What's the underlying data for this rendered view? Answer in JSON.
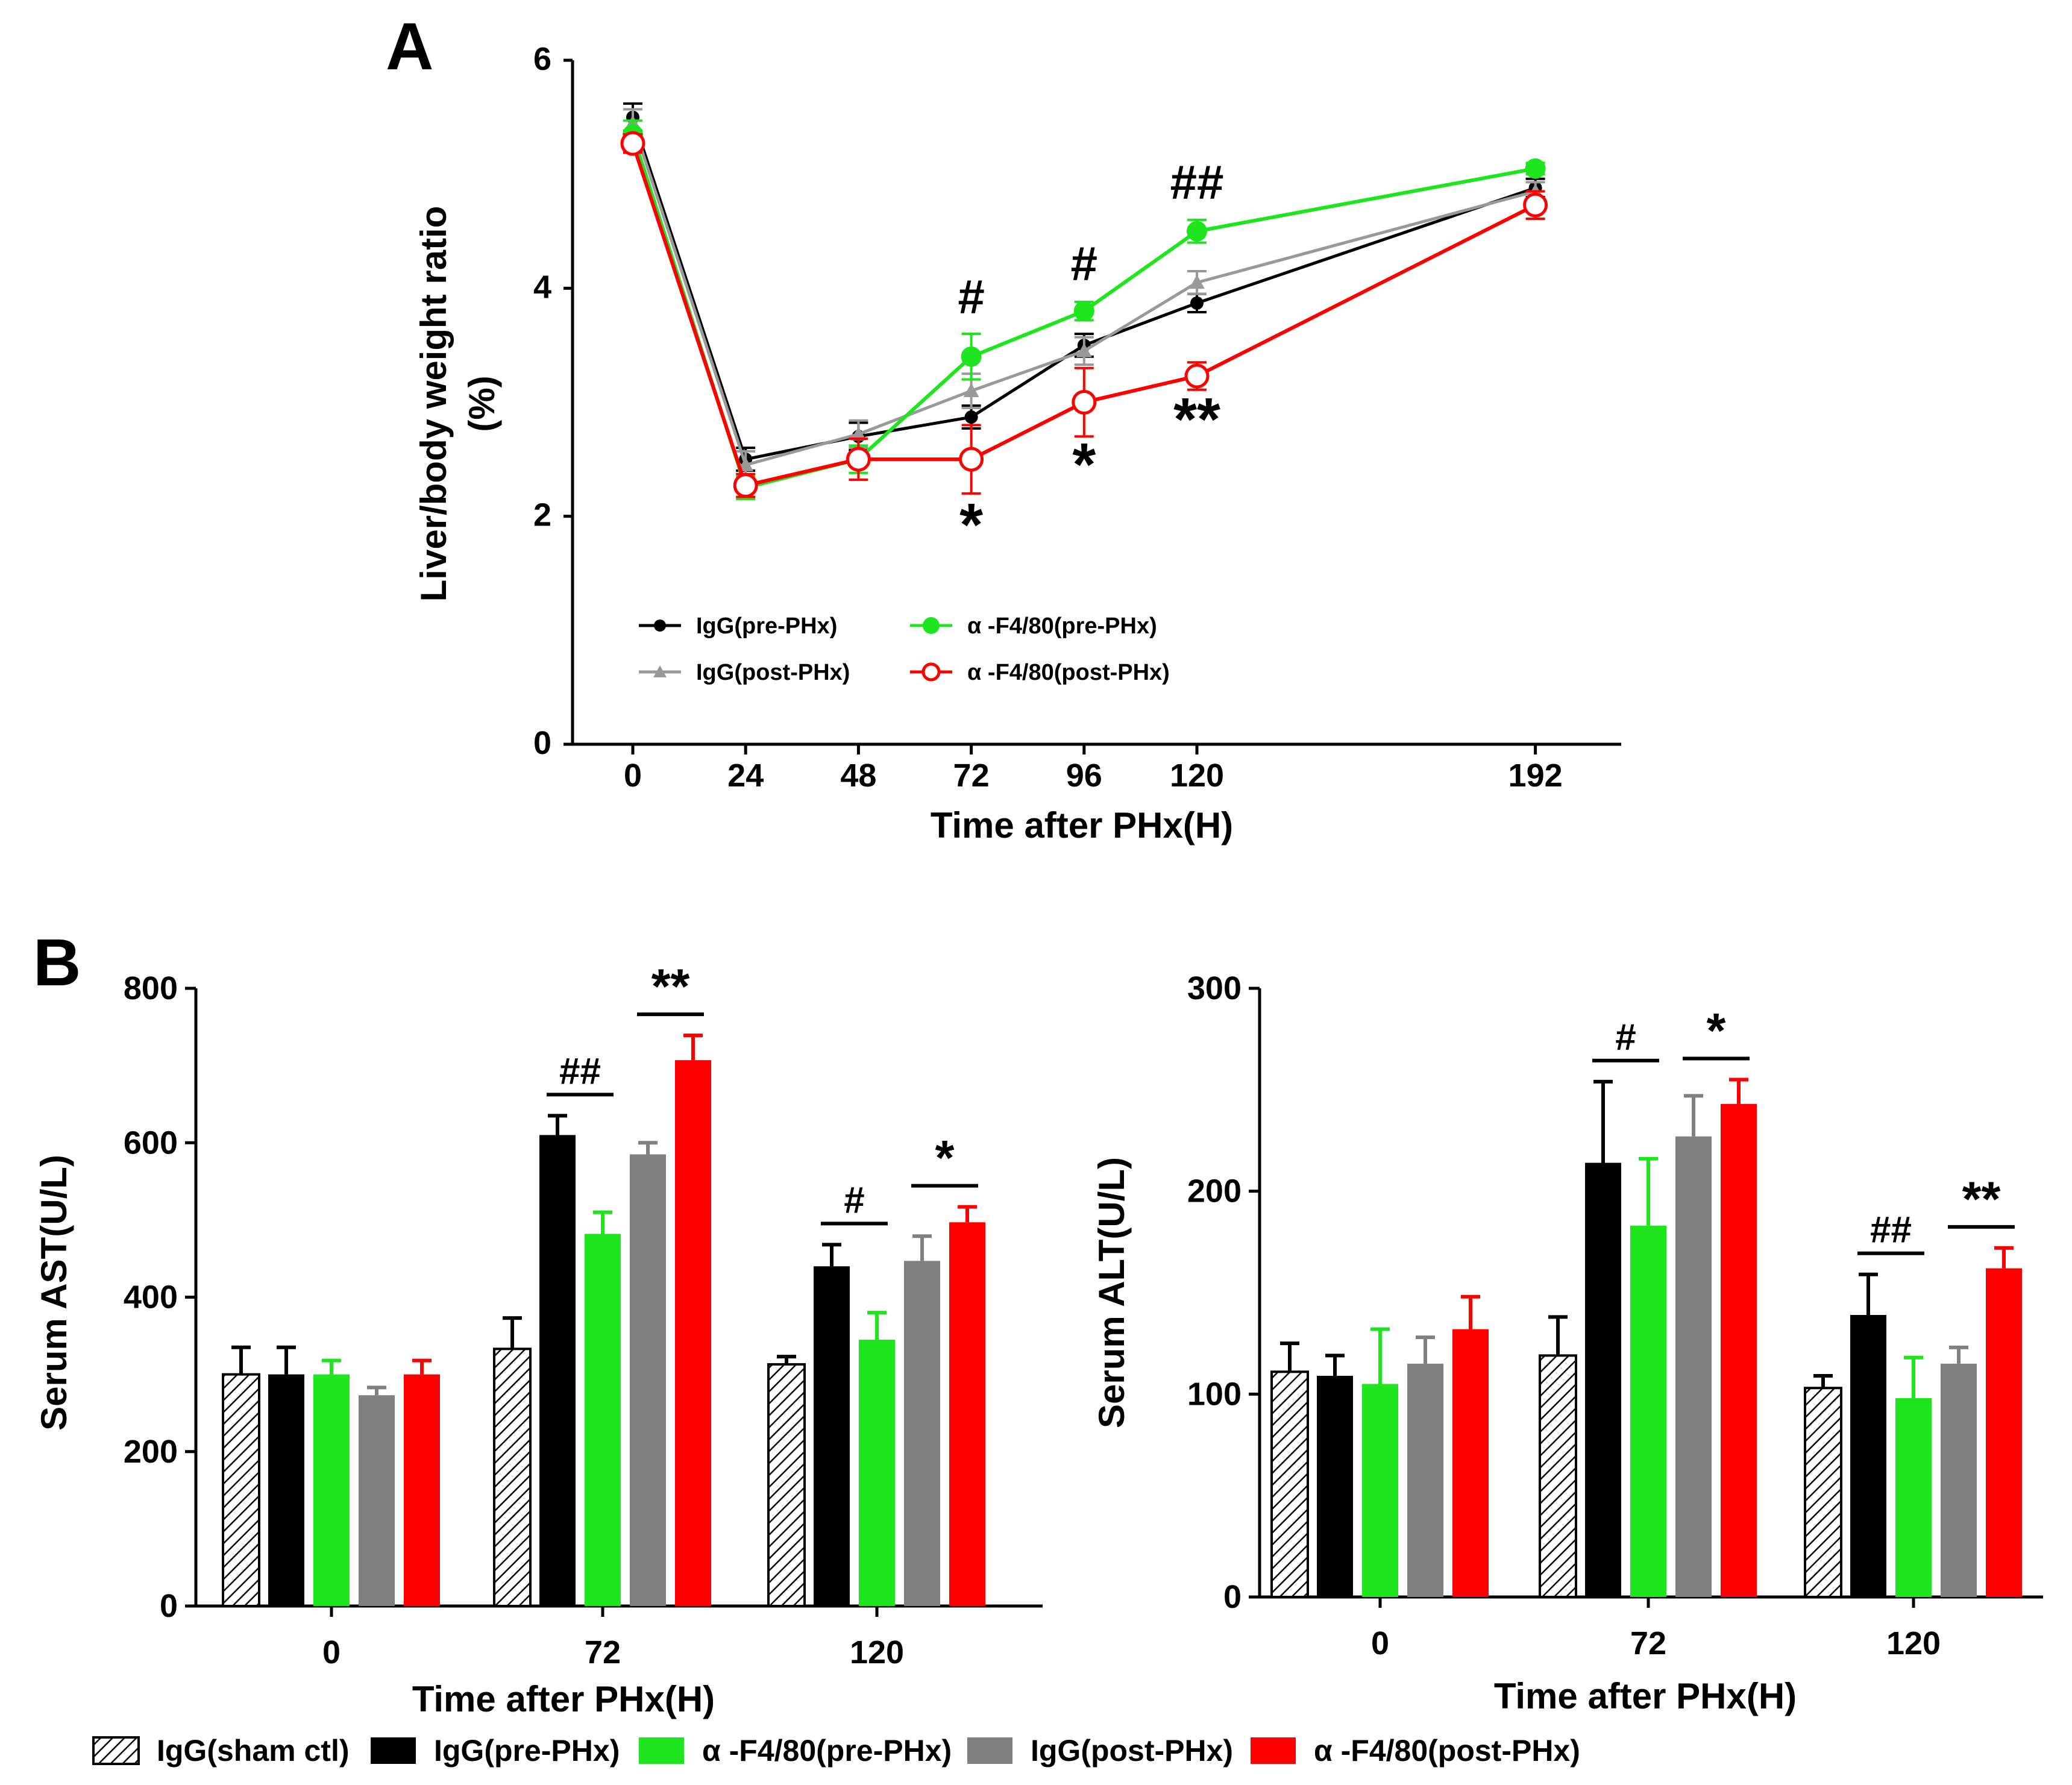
{
  "panel_labels": {
    "a": "A",
    "b": "B"
  },
  "colors": {
    "sham": "#ffffff",
    "pre_igg": "#000000",
    "pre_anti": "#1fe51f",
    "post_igg": "#808080",
    "post_anti": "#ff0000",
    "line_post_igg": "#999999"
  },
  "chart_data": [
    {
      "type": "line",
      "panel": "A",
      "title": "",
      "xlabel": "Time after PHx(H)",
      "ylabel_line1": "Liver/body weight ratio",
      "ylabel_line2": "(%)",
      "x": [
        0,
        24,
        48,
        72,
        96,
        120,
        192
      ],
      "x_tick_labels": [
        "0",
        "24",
        "48",
        "72",
        "96",
        "120",
        "192"
      ],
      "y_tick_labels": [
        "0",
        "2",
        "4",
        "6"
      ],
      "ylim": [
        0,
        6
      ],
      "series": [
        {
          "name": "IgG(pre-PHx)",
          "values": [
            5.5,
            2.5,
            2.7,
            2.87,
            3.5,
            3.87,
            4.88
          ],
          "errors": [
            0.12,
            0.1,
            0.12,
            0.1,
            0.1,
            0.08,
            0.08
          ]
        },
        {
          "name": "IgG(post-PHx)",
          "values": [
            5.45,
            2.45,
            2.72,
            3.1,
            3.45,
            4.05,
            4.85
          ],
          "errors": [
            0.12,
            0.12,
            0.12,
            0.15,
            0.12,
            0.1,
            0.08
          ]
        },
        {
          "name": "α -F4/80(pre-PHx)",
          "values": [
            5.35,
            2.25,
            2.5,
            3.4,
            3.8,
            4.5,
            5.05
          ],
          "errors": [
            0.12,
            0.1,
            0.12,
            0.2,
            0.08,
            0.1,
            0.05
          ]
        },
        {
          "name": "α -F4/80(post-PHx)",
          "values": [
            5.27,
            2.27,
            2.5,
            2.5,
            3.0,
            3.23,
            4.73
          ],
          "errors": [
            0.08,
            0.1,
            0.18,
            0.3,
            0.3,
            0.12,
            0.12
          ]
        }
      ],
      "annotations": [
        {
          "x": 72,
          "text": "#",
          "position": "above"
        },
        {
          "x": 96,
          "text": "#",
          "position": "above"
        },
        {
          "x": 120,
          "text": "##",
          "position": "above"
        },
        {
          "x": 72,
          "text": "*",
          "position": "below"
        },
        {
          "x": 96,
          "text": "*",
          "position": "below"
        },
        {
          "x": 120,
          "text": "**",
          "position": "below"
        }
      ],
      "legend_placement": "bottom-center"
    },
    {
      "type": "bar",
      "panel": "B-left",
      "xlabel": "Time after PHx(H)",
      "ylabel": "Serum AST(U/L)",
      "categories": [
        "0",
        "72",
        "120"
      ],
      "y_tick_labels": [
        "0",
        "200",
        "400",
        "600",
        "800"
      ],
      "ylim": [
        0,
        800
      ],
      "series": [
        {
          "name": "IgG(sham ctl)",
          "values": [
            300,
            333,
            313
          ],
          "errors": [
            35,
            40,
            10
          ]
        },
        {
          "name": "IgG(pre-PHx)",
          "values": [
            300,
            610,
            440
          ],
          "errors": [
            35,
            25,
            28
          ]
        },
        {
          "name": "α -F4/80(pre-PHx)",
          "values": [
            300,
            482,
            345
          ],
          "errors": [
            18,
            28,
            35
          ]
        },
        {
          "name": "IgG(post-PHx)",
          "values": [
            273,
            585,
            447
          ],
          "errors": [
            10,
            15,
            32
          ]
        },
        {
          "name": "α -F4/80(post-PHx)",
          "values": [
            300,
            707,
            497
          ],
          "errors": [
            18,
            32,
            20
          ]
        }
      ],
      "annotations": [
        {
          "category": "72",
          "text": "##",
          "pair": "pre"
        },
        {
          "category": "72",
          "text": "**",
          "pair": "post"
        },
        {
          "category": "120",
          "text": "#",
          "pair": "pre"
        },
        {
          "category": "120",
          "text": "*",
          "pair": "post"
        }
      ]
    },
    {
      "type": "bar",
      "panel": "B-right",
      "xlabel": "Time after PHx(H)",
      "ylabel": "Serum ALT(U/L)",
      "categories": [
        "0",
        "72",
        "120"
      ],
      "y_tick_labels": [
        "0",
        "100",
        "200",
        "300"
      ],
      "ylim": [
        0,
        300
      ],
      "series": [
        {
          "name": "IgG(sham ctl)",
          "values": [
            111,
            119,
            103
          ],
          "errors": [
            14,
            19,
            6
          ]
        },
        {
          "name": "IgG(pre-PHx)",
          "values": [
            109,
            214,
            139
          ],
          "errors": [
            10,
            40,
            20
          ]
        },
        {
          "name": "α -F4/80(pre-PHx)",
          "values": [
            105,
            183,
            98
          ],
          "errors": [
            27,
            33,
            20
          ]
        },
        {
          "name": "IgG(post-PHx)",
          "values": [
            115,
            227,
            115
          ],
          "errors": [
            13,
            20,
            8
          ]
        },
        {
          "name": "α -F4/80(post-PHx)",
          "values": [
            132,
            243,
            162
          ],
          "errors": [
            16,
            12,
            10
          ]
        }
      ],
      "annotations": [
        {
          "category": "72",
          "text": "#",
          "pair": "pre"
        },
        {
          "category": "72",
          "text": "*",
          "pair": "post"
        },
        {
          "category": "120",
          "text": "##",
          "pair": "pre"
        },
        {
          "category": "120",
          "text": "**",
          "pair": "post"
        }
      ]
    }
  ],
  "legend_bottom": [
    "IgG(sham ctl)",
    "IgG(pre-PHx)",
    "α -F4/80(pre-PHx)",
    "IgG(post-PHx)",
    "α -F4/80(post-PHx)"
  ]
}
